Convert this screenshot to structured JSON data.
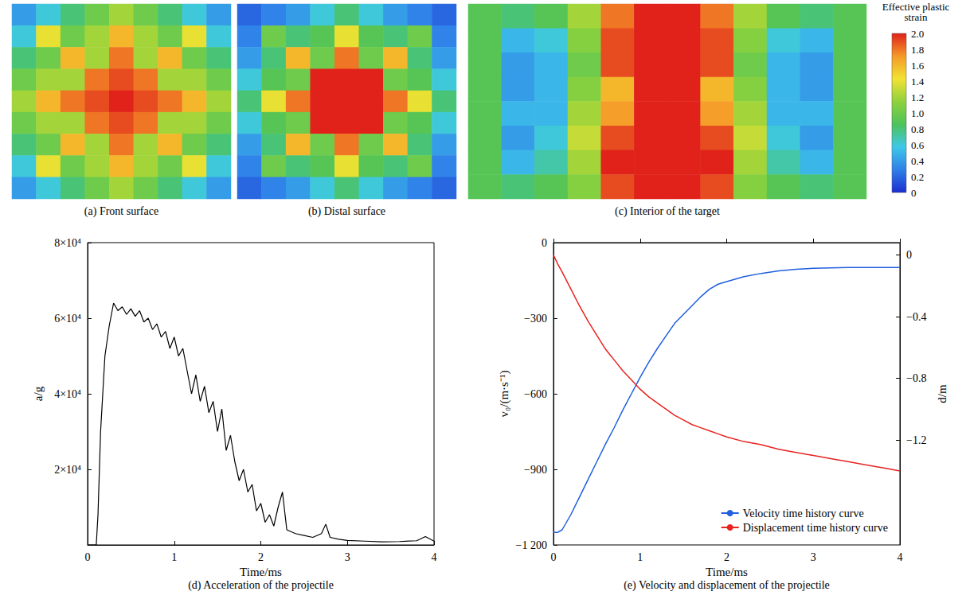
{
  "chart_data": [
    {
      "type": "heatmap",
      "title": "(a) Front surface",
      "tick_labels": false,
      "cells": [
        [
          0.4,
          0.6,
          0.8,
          1.0,
          1.2,
          1.0,
          0.8,
          0.6,
          0.4
        ],
        [
          0.6,
          1.4,
          1.0,
          1.2,
          1.6,
          1.2,
          1.0,
          1.4,
          0.6
        ],
        [
          0.8,
          1.0,
          1.6,
          1.2,
          1.8,
          1.2,
          1.6,
          1.0,
          0.8
        ],
        [
          1.0,
          1.2,
          1.2,
          1.8,
          1.9,
          1.8,
          1.2,
          1.2,
          1.0
        ],
        [
          1.2,
          1.6,
          1.8,
          1.9,
          2.0,
          1.9,
          1.8,
          1.6,
          1.2
        ],
        [
          1.0,
          1.2,
          1.2,
          1.8,
          1.9,
          1.8,
          1.2,
          1.2,
          1.0
        ],
        [
          0.8,
          1.0,
          1.6,
          1.2,
          1.8,
          1.2,
          1.6,
          1.0,
          0.8
        ],
        [
          0.6,
          1.4,
          1.0,
          1.2,
          1.6,
          1.2,
          1.0,
          1.4,
          0.6
        ],
        [
          0.4,
          0.6,
          0.8,
          1.0,
          1.2,
          1.0,
          0.8,
          0.6,
          0.4
        ]
      ]
    },
    {
      "type": "heatmap",
      "title": "(b) Distal surface",
      "tick_labels": false,
      "cells": [
        [
          0.2,
          0.3,
          0.4,
          0.6,
          0.8,
          0.6,
          0.4,
          0.3,
          0.2
        ],
        [
          0.3,
          1.0,
          0.8,
          0.9,
          1.4,
          0.9,
          0.8,
          1.0,
          0.3
        ],
        [
          0.4,
          0.8,
          1.6,
          1.0,
          1.8,
          1.0,
          1.6,
          0.8,
          0.4
        ],
        [
          0.6,
          0.9,
          1.0,
          2.0,
          2.0,
          2.0,
          1.0,
          0.9,
          0.6
        ],
        [
          0.8,
          1.4,
          1.8,
          2.0,
          2.0,
          2.0,
          1.8,
          1.4,
          0.8
        ],
        [
          0.6,
          0.9,
          1.0,
          2.0,
          2.0,
          2.0,
          1.0,
          0.9,
          0.6
        ],
        [
          0.4,
          0.8,
          1.6,
          1.0,
          1.8,
          1.0,
          1.6,
          0.8,
          0.4
        ],
        [
          0.3,
          1.0,
          0.8,
          0.9,
          1.4,
          0.9,
          0.8,
          1.0,
          0.3
        ],
        [
          0.2,
          0.3,
          0.4,
          0.6,
          0.8,
          0.6,
          0.4,
          0.3,
          0.2
        ]
      ]
    },
    {
      "type": "heatmap",
      "title": "(c) Interior of the target",
      "tick_labels": false,
      "cells": [
        [
          0.9,
          0.8,
          0.9,
          1.2,
          1.8,
          2.0,
          2.0,
          1.8,
          1.2,
          0.9,
          0.8,
          0.9
        ],
        [
          0.9,
          0.5,
          0.6,
          1.1,
          1.9,
          2.0,
          2.0,
          1.9,
          1.1,
          0.6,
          0.5,
          0.9
        ],
        [
          0.9,
          0.4,
          0.5,
          1.0,
          1.9,
          2.0,
          2.0,
          1.9,
          1.0,
          0.5,
          0.4,
          0.9
        ],
        [
          0.9,
          0.4,
          0.5,
          1.1,
          1.6,
          2.0,
          2.0,
          1.6,
          1.1,
          0.5,
          0.4,
          0.9
        ],
        [
          0.9,
          0.5,
          0.5,
          1.2,
          1.7,
          2.0,
          2.0,
          1.7,
          1.2,
          0.5,
          0.5,
          0.9
        ],
        [
          0.9,
          0.4,
          0.6,
          1.3,
          1.9,
          2.0,
          2.0,
          1.9,
          1.3,
          0.6,
          0.4,
          0.9
        ],
        [
          0.9,
          0.5,
          0.7,
          1.2,
          2.0,
          2.0,
          2.0,
          2.0,
          1.2,
          0.7,
          0.5,
          0.9
        ],
        [
          0.9,
          0.8,
          0.9,
          1.1,
          1.9,
          2.0,
          2.0,
          1.9,
          1.1,
          0.9,
          0.8,
          0.9
        ]
      ],
      "colorbar": {
        "title": "Effective plastic strain",
        "range": [
          0,
          2
        ],
        "ticks": [
          0,
          0.2,
          0.4,
          0.6,
          0.8,
          {
            "value": 1,
            "label": "1.0"
          },
          1.2,
          1.4,
          1.6,
          1.8,
          {
            "value": 2,
            "label": "2.0"
          }
        ]
      }
    },
    {
      "type": "line",
      "title": "(d) Acceleration of the projectile",
      "x_label": "Time/ms",
      "y_label": "a/g",
      "grid": false,
      "color": "#000000",
      "xlim": [
        0,
        4
      ],
      "xticks": [
        0,
        1,
        2,
        3,
        4
      ],
      "ylim": [
        0,
        80000
      ],
      "yticks": [
        {
          "value": 20000,
          "label": "2×10⁴"
        },
        {
          "value": 40000,
          "label": "4×10⁴"
        },
        {
          "value": 60000,
          "label": "6×10⁴"
        },
        {
          "value": 80000,
          "label": "8×10⁴"
        }
      ],
      "x": [
        0,
        0.1,
        0.12,
        0.15,
        0.2,
        0.25,
        0.3,
        0.35,
        0.4,
        0.45,
        0.5,
        0.55,
        0.6,
        0.65,
        0.7,
        0.75,
        0.8,
        0.85,
        0.9,
        0.95,
        1.0,
        1.05,
        1.1,
        1.15,
        1.2,
        1.25,
        1.3,
        1.35,
        1.4,
        1.45,
        1.5,
        1.55,
        1.6,
        1.65,
        1.7,
        1.75,
        1.8,
        1.85,
        1.9,
        1.95,
        2.0,
        2.05,
        2.1,
        2.15,
        2.2,
        2.25,
        2.3,
        2.4,
        2.5,
        2.6,
        2.7,
        2.75,
        2.8,
        2.9,
        3.0,
        3.2,
        3.4,
        3.6,
        3.8,
        3.9,
        4.0
      ],
      "values": [
        0,
        0,
        8000,
        30000,
        50000,
        58000,
        64000,
        62000,
        63000,
        61000,
        62500,
        60500,
        62000,
        59000,
        60000,
        57000,
        58500,
        55000,
        56500,
        52000,
        55000,
        50000,
        52000,
        46000,
        40000,
        45000,
        38000,
        42000,
        35000,
        38000,
        30000,
        36000,
        25000,
        29000,
        22000,
        17000,
        20000,
        14000,
        16000,
        9000,
        11000,
        6000,
        8000,
        5000,
        10000,
        14000,
        4000,
        3000,
        2500,
        2000,
        3000,
        5500,
        2000,
        1500,
        1200,
        1000,
        800,
        900,
        1100,
        2200,
        1000
      ]
    },
    {
      "type": "line",
      "title": "(e) Velocity and displacement of the projectile",
      "x_label": "Time/ms",
      "y_label": "v₀/(m·s⁻¹)",
      "y2_label": "d/m",
      "grid": false,
      "legend": "lower right",
      "xlim": [
        0,
        4
      ],
      "xticks": [
        0,
        1,
        2,
        3,
        4
      ],
      "ylim": [
        -1200,
        0
      ],
      "yticks": [
        {
          "value": -1200,
          "label": "−1 200"
        },
        {
          "value": -900,
          "label": "−900"
        },
        {
          "value": -600,
          "label": "−600"
        },
        {
          "value": -300,
          "label": "−300"
        },
        0
      ],
      "y2lim": [
        -1.88,
        0.08
      ],
      "y2ticks": [
        {
          "value": -1.2,
          "label": "−1.2"
        },
        {
          "value": -0.8,
          "label": "−0.8"
        },
        {
          "value": -0.4,
          "label": "−0.4"
        },
        0
      ],
      "series": [
        {
          "name": "Velocity time history curve",
          "color": "#1f5fe0",
          "axis": "y",
          "x": [
            0,
            0.05,
            0.1,
            0.2,
            0.3,
            0.4,
            0.5,
            0.6,
            0.7,
            0.8,
            0.9,
            1.0,
            1.1,
            1.2,
            1.3,
            1.4,
            1.5,
            1.6,
            1.7,
            1.8,
            1.9,
            2.0,
            2.2,
            2.4,
            2.6,
            2.8,
            3.0,
            3.2,
            3.4,
            3.6,
            3.8,
            4.0
          ],
          "values": [
            -1150,
            -1150,
            -1140,
            -1080,
            -1010,
            -940,
            -870,
            -800,
            -735,
            -665,
            -600,
            -535,
            -475,
            -420,
            -370,
            -320,
            -285,
            -250,
            -215,
            -185,
            -165,
            -155,
            -135,
            -122,
            -112,
            -106,
            -102,
            -100,
            -99,
            -99,
            -99,
            -99
          ]
        },
        {
          "name": "Displacement time history curve",
          "color": "#e8231f",
          "axis": "y2",
          "x": [
            0,
            0.05,
            0.1,
            0.2,
            0.3,
            0.4,
            0.5,
            0.6,
            0.7,
            0.8,
            0.9,
            1.0,
            1.1,
            1.2,
            1.3,
            1.4,
            1.5,
            1.6,
            1.7,
            1.8,
            1.9,
            2.0,
            2.2,
            2.4,
            2.6,
            2.8,
            3.0,
            3.2,
            3.4,
            3.6,
            3.8,
            4.0
          ],
          "values": [
            0,
            -0.06,
            -0.11,
            -0.22,
            -0.33,
            -0.43,
            -0.52,
            -0.61,
            -0.68,
            -0.75,
            -0.81,
            -0.87,
            -0.92,
            -0.96,
            -1.0,
            -1.04,
            -1.07,
            -1.1,
            -1.12,
            -1.14,
            -1.16,
            -1.18,
            -1.21,
            -1.23,
            -1.26,
            -1.28,
            -1.3,
            -1.32,
            -1.34,
            -1.36,
            -1.38,
            -1.4
          ]
        }
      ]
    }
  ]
}
